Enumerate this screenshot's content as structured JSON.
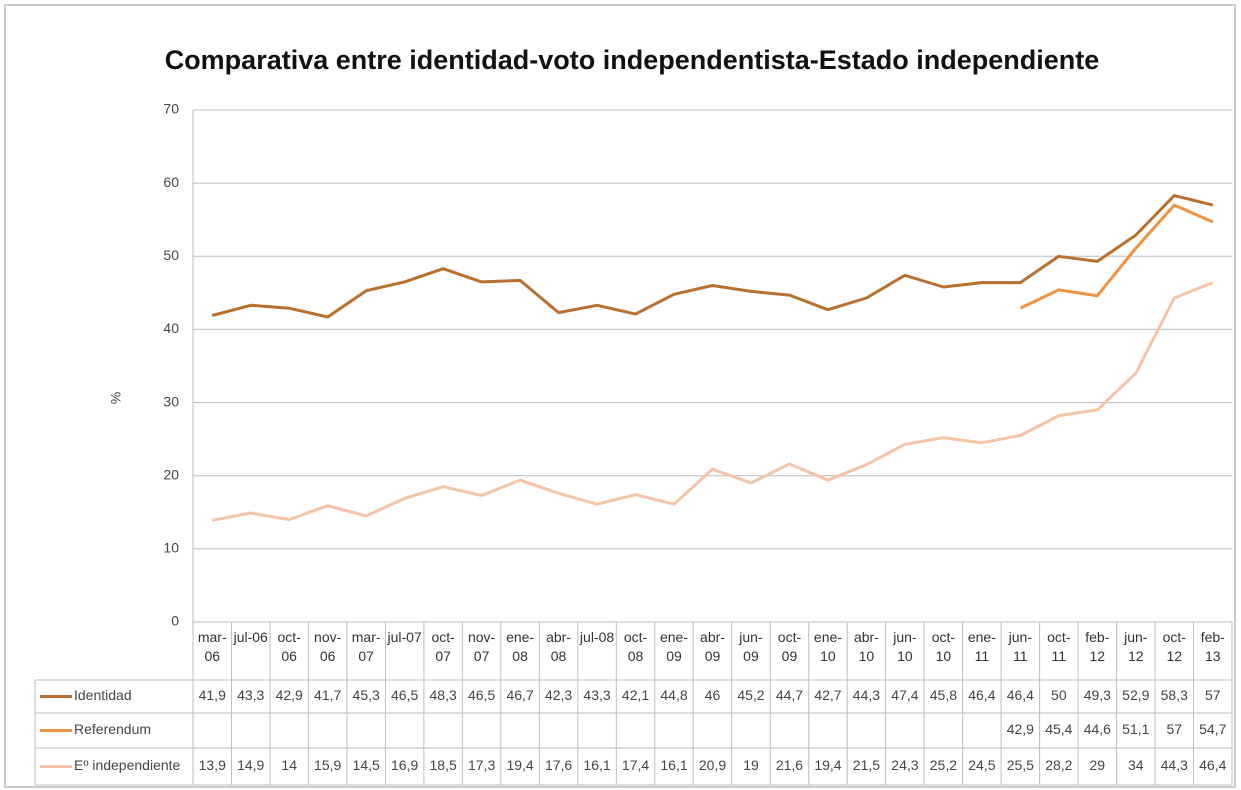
{
  "chart_data": {
    "type": "line",
    "title": "Comparativa entre identidad-voto independentista-Estado independiente",
    "y_label": "%",
    "categories": [
      "mar-06",
      "jul-06",
      "oct-06",
      "nov-06",
      "mar-07",
      "jul-07",
      "oct-07",
      "nov-07",
      "ene-08",
      "abr-08",
      "jul-08",
      "oct-08",
      "ene-09",
      "abr-09",
      "jun-09",
      "oct-09",
      "ene-10",
      "abr-10",
      "jun-10",
      "oct-10",
      "ene-11",
      "jun-11",
      "oct-11",
      "feb-12",
      "jun-12",
      "oct-12",
      "feb-13"
    ],
    "series": [
      {
        "name": "Identidad",
        "color": "#b8702f",
        "values": [
          41.9,
          43.3,
          42.9,
          41.7,
          45.3,
          46.5,
          48.3,
          46.5,
          46.7,
          42.3,
          43.3,
          42.1,
          44.8,
          46,
          45.2,
          44.7,
          42.7,
          44.3,
          47.4,
          45.8,
          46.4,
          46.4,
          50,
          49.3,
          52.9,
          58.3,
          57
        ],
        "value_labels": [
          "41,9",
          "43,3",
          "42,9",
          "41,7",
          "45,3",
          "46,5",
          "48,3",
          "46,5",
          "46,7",
          "42,3",
          "43,3",
          "42,1",
          "44,8",
          "46",
          "45,2",
          "44,7",
          "42,7",
          "44,3",
          "47,4",
          "45,8",
          "46,4",
          "46,4",
          "50",
          "49,3",
          "52,9",
          "58,3",
          "57"
        ]
      },
      {
        "name": "Referendum",
        "color": "#f0923f",
        "values": [
          null,
          null,
          null,
          null,
          null,
          null,
          null,
          null,
          null,
          null,
          null,
          null,
          null,
          null,
          null,
          null,
          null,
          null,
          null,
          null,
          null,
          42.9,
          45.4,
          44.6,
          51.1,
          57,
          54.7
        ],
        "value_labels": [
          null,
          null,
          null,
          null,
          null,
          null,
          null,
          null,
          null,
          null,
          null,
          null,
          null,
          null,
          null,
          null,
          null,
          null,
          null,
          null,
          null,
          "42,9",
          "45,4",
          "44,6",
          "51,1",
          "57",
          "54,7"
        ]
      },
      {
        "name": "Eº independiente",
        "color": "#f5c4a6",
        "values": [
          13.9,
          14.9,
          14,
          15.9,
          14.5,
          16.9,
          18.5,
          17.3,
          19.4,
          17.6,
          16.1,
          17.4,
          16.1,
          20.9,
          19,
          21.6,
          19.4,
          21.5,
          24.3,
          25.2,
          24.5,
          25.5,
          28.2,
          29,
          34,
          44.3,
          46.4
        ],
        "value_labels": [
          "13,9",
          "14,9",
          "14",
          "15,9",
          "14,5",
          "16,9",
          "18,5",
          "17,3",
          "19,4",
          "17,6",
          "16,1",
          "17,4",
          "16,1",
          "20,9",
          "19",
          "21,6",
          "19,4",
          "21,5",
          "24,3",
          "25,2",
          "24,5",
          "25,5",
          "28,2",
          "29",
          "34",
          "44,3",
          "46,4"
        ]
      }
    ],
    "ylim": [
      0,
      70
    ],
    "yticks": [
      0,
      10,
      20,
      30,
      40,
      50,
      60,
      70
    ],
    "grid": true
  }
}
